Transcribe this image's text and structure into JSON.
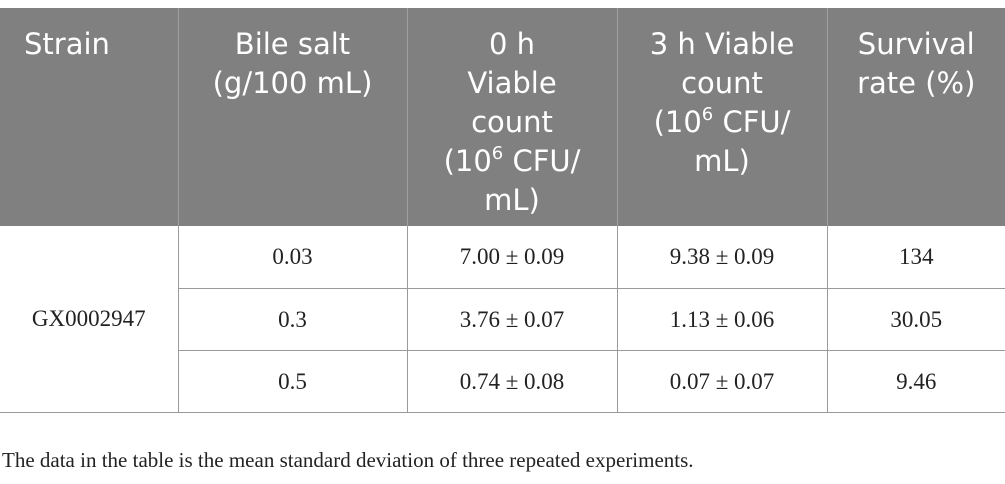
{
  "headers": {
    "strain": "Strain",
    "bile_salt": [
      "Bile salt",
      "(g/100 mL)"
    ],
    "viable_0h": [
      "0 h",
      "Viable",
      "count",
      "(10",
      "6",
      " CFU/",
      "mL)"
    ],
    "viable_3h": [
      "3 h Viable",
      "count",
      "(10",
      "6",
      " CFU/",
      "mL)"
    ],
    "survival": [
      "Survival",
      "rate (%)"
    ]
  },
  "strain": "GX0002947",
  "rows": [
    {
      "bile_salt": "0.03",
      "viable_0h": "7.00 ± 0.09",
      "viable_3h": "9.38 ± 0.09",
      "survival": "134"
    },
    {
      "bile_salt": "0.3",
      "viable_0h": "3.76 ± 0.07",
      "viable_3h": "1.13 ± 0.06",
      "survival": "30.05"
    },
    {
      "bile_salt": "0.5",
      "viable_0h": "0.74 ± 0.08",
      "viable_3h": "0.07 ± 0.07",
      "survival": "9.46"
    }
  ],
  "footnote": "The data in the table is the mean standard deviation of three repeated experiments."
}
